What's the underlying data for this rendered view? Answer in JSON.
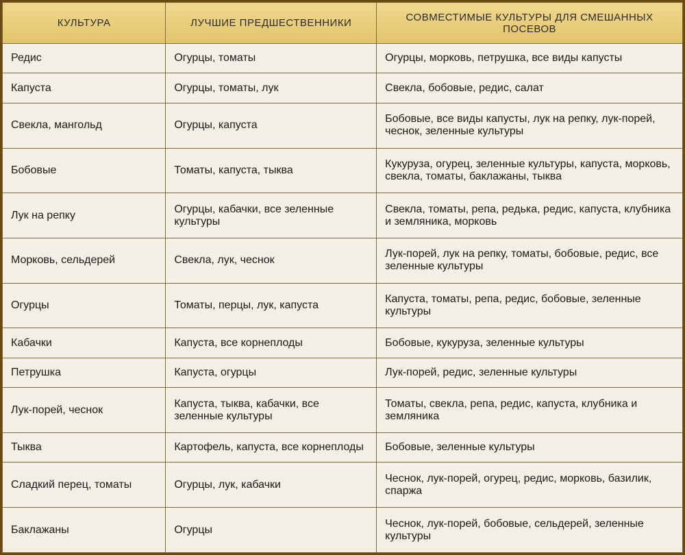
{
  "table": {
    "headers": [
      "КУЛЬТУРА",
      "ЛУЧШИЕ ПРЕДШЕСТВЕННИКИ",
      "СОВМЕСТИМЫЕ КУЛЬТУРЫ ДЛЯ СМЕШАННЫХ ПОСЕВОВ"
    ],
    "rows": [
      [
        "Редис",
        "Огурцы, томаты",
        "Огурцы, морковь, петрушка, все виды капусты"
      ],
      [
        "Капуста",
        "Огурцы, томаты, лук",
        "Свекла, бобовые, редис, салат"
      ],
      [
        "Свекла, мангольд",
        "Огурцы, капуста",
        "Бобовые, все виды капусты, лук на репку, лук-порей, чеснок, зеленные культуры"
      ],
      [
        "Бобовые",
        "Томаты, капуста, тыква",
        "Кукуруза, огурец, зеленные культуры, капуста, морковь, свекла, томаты, баклажаны, тыква"
      ],
      [
        "Лук на репку",
        "Огурцы, кабачки, все зеленные культуры",
        "Свекла, томаты, репа, редька, редис, капуста, клубника и земляника, морковь"
      ],
      [
        "Морковь, сельдерей",
        "Свекла, лук, чеснок",
        "Лук-порей, лук на репку, томаты, бобовые, редис, все зеленные культуры"
      ],
      [
        "Огурцы",
        "Томаты, перцы, лук, капуста",
        "Капуста, томаты, репа, редис, бобовые, зеленные культуры"
      ],
      [
        "Кабачки",
        "Капуста, все корнеплоды",
        "Бобовые, кукуруза, зеленные культуры"
      ],
      [
        "Петрушка",
        "Капуста, огурцы",
        "Лук-порей, редис, зеленные культуры"
      ],
      [
        "Лук-порей, чеснок",
        "Капуста, тыква, кабачки, все зеленные культуры",
        "Томаты, свекла, репа, редис, капуста, клубника и земляника"
      ],
      [
        "Тыква",
        "Картофель, капуста, все корнеплоды",
        "Бобовые, зеленные культуры"
      ],
      [
        "Сладкий перец, томаты",
        "Огурцы, лук, кабачки",
        "Чеснок, лук-порей, огурец, редис, морковь, базилик, спаржа"
      ],
      [
        "Баклажаны",
        "Огурцы",
        "Чеснок, лук-порей, бобовые, сельдерей, зеленные культуры"
      ]
    ],
    "colors": {
      "header_bg_top": "#efd88e",
      "header_bg_bottom": "#e2c36a",
      "body_bg": "#f4efe4",
      "border": "#7a6a3a",
      "outer_border": "#6b4a12",
      "text": "#1a1a1a"
    },
    "fontsize_header": 15,
    "fontsize_cell": 16
  }
}
